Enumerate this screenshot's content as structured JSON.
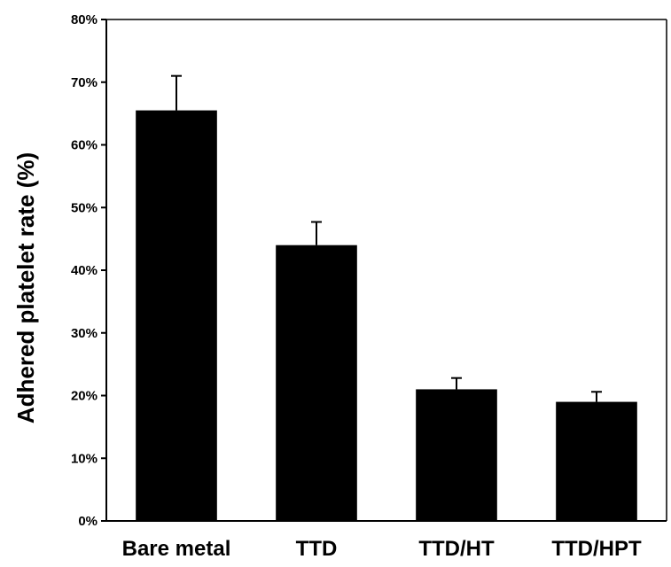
{
  "chart_data": {
    "type": "bar",
    "title": "",
    "xlabel": "",
    "ylabel": "Adhered platelet rate (%)",
    "categories": [
      "Bare metal",
      "TTD",
      "TTD/HT",
      "TTD/HPT"
    ],
    "values": [
      65.5,
      44,
      21,
      19
    ],
    "error_upper": [
      5.5,
      3.7,
      1.8,
      1.6
    ],
    "value_unit": "%",
    "ylim": [
      0,
      80
    ],
    "yticks": [
      0,
      10,
      20,
      30,
      40,
      50,
      60,
      70,
      80
    ],
    "ytick_labels": [
      "0%",
      "10%",
      "20%",
      "30%",
      "40%",
      "50%",
      "60%",
      "70%",
      "80%"
    ],
    "grid": false,
    "legend": "none",
    "bar_color": "#000000"
  }
}
